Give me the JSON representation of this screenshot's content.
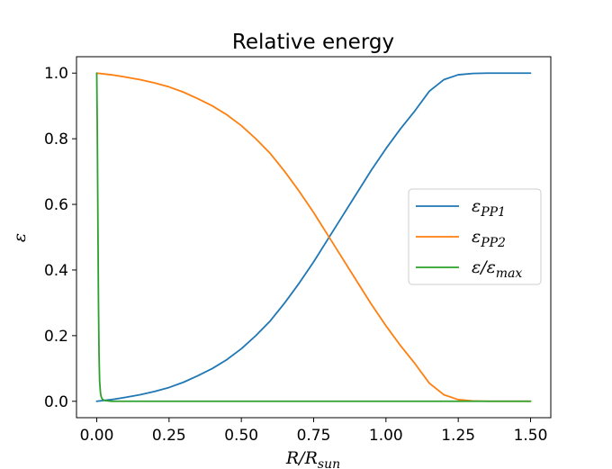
{
  "chart_data": {
    "type": "line",
    "title": "Relative energy",
    "xlabel": {
      "main": "R/R",
      "sub": "sun"
    },
    "ylabel": "ε",
    "xlim": [
      -0.07,
      1.57
    ],
    "ylim": [
      -0.05,
      1.05
    ],
    "xticks": [
      0.0,
      0.25,
      0.5,
      0.75,
      1.0,
      1.25,
      1.5
    ],
    "xtick_labels": [
      "0.00",
      "0.25",
      "0.50",
      "0.75",
      "1.00",
      "1.25",
      "1.50"
    ],
    "yticks": [
      0.0,
      0.2,
      0.4,
      0.6,
      0.8,
      1.0
    ],
    "ytick_labels": [
      "0.0",
      "0.2",
      "0.4",
      "0.6",
      "0.8",
      "1.0"
    ],
    "legend_position": "center-right",
    "series": [
      {
        "name": "ε_PP1",
        "label_main": "ε",
        "label_sub": "PP1",
        "color": "#1f77b4",
        "x": [
          0.0,
          0.05,
          0.1,
          0.15,
          0.2,
          0.25,
          0.3,
          0.35,
          0.4,
          0.45,
          0.5,
          0.55,
          0.6,
          0.65,
          0.7,
          0.75,
          0.8,
          0.85,
          0.9,
          0.95,
          1.0,
          1.05,
          1.1,
          1.15,
          1.2,
          1.25,
          1.3,
          1.35,
          1.4,
          1.45,
          1.5
        ],
        "y": [
          0.0,
          0.005,
          0.012,
          0.02,
          0.03,
          0.042,
          0.058,
          0.078,
          0.1,
          0.127,
          0.16,
          0.2,
          0.245,
          0.3,
          0.36,
          0.425,
          0.495,
          0.565,
          0.635,
          0.705,
          0.77,
          0.83,
          0.885,
          0.945,
          0.98,
          0.995,
          0.999,
          1.0,
          1.0,
          1.0,
          1.0
        ]
      },
      {
        "name": "ε_PP2",
        "label_main": "ε",
        "label_sub": "PP2",
        "color": "#ff7f0e",
        "x": [
          0.0,
          0.05,
          0.1,
          0.15,
          0.2,
          0.25,
          0.3,
          0.35,
          0.4,
          0.45,
          0.5,
          0.55,
          0.6,
          0.65,
          0.7,
          0.75,
          0.8,
          0.85,
          0.9,
          0.95,
          1.0,
          1.05,
          1.1,
          1.15,
          1.2,
          1.25,
          1.3,
          1.35,
          1.4,
          1.45,
          1.5
        ],
        "y": [
          1.0,
          0.995,
          0.988,
          0.98,
          0.97,
          0.958,
          0.942,
          0.922,
          0.9,
          0.873,
          0.84,
          0.8,
          0.755,
          0.7,
          0.64,
          0.575,
          0.505,
          0.435,
          0.365,
          0.295,
          0.23,
          0.17,
          0.115,
          0.055,
          0.02,
          0.005,
          0.001,
          0.0,
          0.0,
          0.0,
          0.0
        ]
      },
      {
        "name": "ε/ε_max",
        "label_main": "ε/ε",
        "label_sub": "max",
        "color": "#2ca02c",
        "x": [
          0.0,
          0.002,
          0.004,
          0.006,
          0.008,
          0.01,
          0.013,
          0.016,
          0.02,
          0.025,
          0.03,
          0.04,
          0.05,
          0.1,
          0.3,
          0.6,
          1.0,
          1.5
        ],
        "y": [
          1.0,
          0.82,
          0.55,
          0.3,
          0.14,
          0.06,
          0.025,
          0.012,
          0.006,
          0.003,
          0.002,
          0.001,
          0.0,
          0.0,
          0.0,
          0.0,
          0.0,
          0.0
        ]
      }
    ]
  }
}
